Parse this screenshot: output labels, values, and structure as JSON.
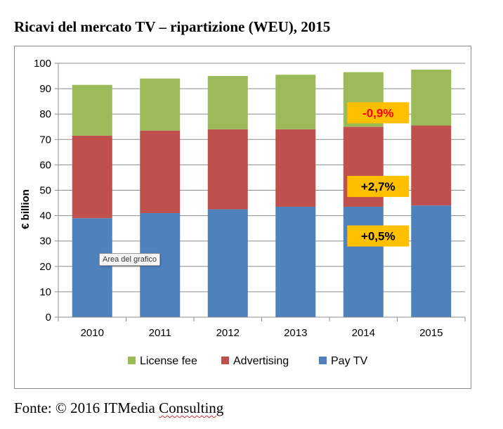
{
  "page_title": "Ricavi del mercato TV – ripartizione (WEU), 2015",
  "tooltip": "Area del grafico",
  "source": {
    "prefix": "Fonte: © 2016 ITMedia ",
    "underlined": "Consulting"
  },
  "colors": {
    "pay_tv": "#4f81bd",
    "advertising": "#c0504d",
    "license_fee": "#9bbb59",
    "annotation_bg": "#ffc000",
    "annotation_red_text": "#ff0000",
    "annotation_text": "#000000"
  },
  "chart_data": {
    "type": "bar",
    "stacked": true,
    "categories": [
      "2010",
      "2011",
      "2012",
      "2013",
      "2014",
      "2015"
    ],
    "series": [
      {
        "name": "Pay TV",
        "values": [
          39,
          41,
          42.5,
          43.5,
          43.5,
          44
        ]
      },
      {
        "name": "Advertising",
        "values": [
          32.5,
          32.5,
          31.5,
          30.5,
          31.5,
          31.5
        ]
      },
      {
        "name": "License fee",
        "values": [
          20,
          20.5,
          21,
          21.5,
          21.5,
          22
        ]
      }
    ],
    "ylabel": "€ billion",
    "ylim": [
      0,
      100
    ],
    "yticks": [
      "0",
      "10",
      "20",
      "30",
      "40",
      "50",
      "60",
      "70",
      "80",
      "90",
      "100"
    ],
    "grid": true,
    "legend": [
      "License fee",
      "Advertising",
      "Pay TV"
    ],
    "legend_position": "bottom",
    "annotations": [
      {
        "text": "-0,9%",
        "series": "License fee",
        "category": "2014",
        "y": 80.5,
        "style": "red"
      },
      {
        "text": "+2,7%",
        "series": "Advertising",
        "category": "2014",
        "y": 51.5,
        "style": "black"
      },
      {
        "text": "+0,5%",
        "series": "Pay TV",
        "category": "2014",
        "y": 32,
        "style": "black"
      }
    ]
  }
}
